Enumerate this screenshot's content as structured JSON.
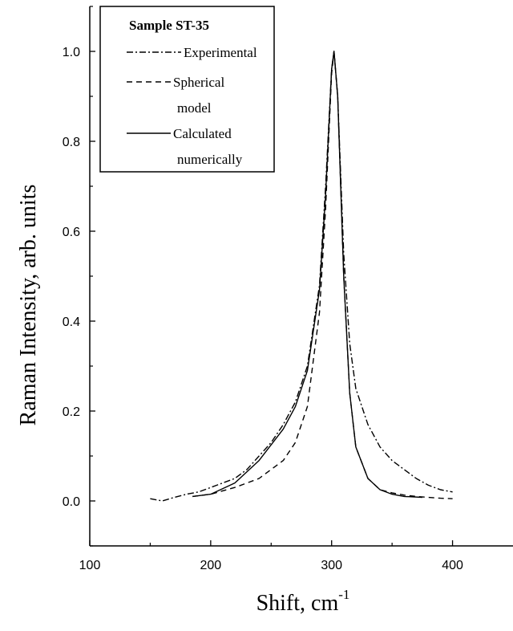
{
  "chart_data": {
    "type": "line",
    "xlabel": "Shift, cm",
    "xlabel_sup": "-1",
    "ylabel": "Raman Intensity, arb. units",
    "xlim": [
      100,
      450
    ],
    "ylim": [
      -0.1,
      1.1
    ],
    "xticks": [
      100,
      200,
      300,
      400
    ],
    "yticks": [
      0.0,
      0.2,
      0.4,
      0.6,
      0.8,
      1.0
    ],
    "ytick_labels": [
      "0.0",
      "0.2",
      "0.4",
      "0.6",
      "0.8",
      "1.0"
    ],
    "legend": {
      "title": "Sample ST-35",
      "placement": "top-left",
      "entries": [
        {
          "lines": [
            "Experimental"
          ],
          "style": "dash-dot"
        },
        {
          "lines": [
            "Spherical",
            "model"
          ],
          "style": "dashed"
        },
        {
          "lines": [
            "Calculated",
            "numerically"
          ],
          "style": "solid"
        }
      ]
    },
    "series": [
      {
        "name": "Experimental",
        "style": "dash-dot",
        "x": [
          150,
          160,
          170,
          180,
          190,
          200,
          210,
          220,
          230,
          240,
          250,
          260,
          270,
          280,
          290,
          295,
          300,
          302,
          305,
          310,
          315,
          320,
          330,
          340,
          350,
          360,
          370,
          380,
          390,
          400
        ],
        "y": [
          0.005,
          0.0,
          0.008,
          0.015,
          0.02,
          0.03,
          0.04,
          0.05,
          0.07,
          0.1,
          0.13,
          0.17,
          0.22,
          0.3,
          0.48,
          0.7,
          0.96,
          1.0,
          0.9,
          0.55,
          0.35,
          0.25,
          0.17,
          0.12,
          0.09,
          0.07,
          0.05,
          0.035,
          0.025,
          0.02
        ]
      },
      {
        "name": "Spherical model",
        "style": "dashed",
        "x": [
          185,
          200,
          220,
          240,
          260,
          270,
          280,
          290,
          295,
          300,
          302,
          305,
          310,
          315,
          320,
          330,
          340,
          350,
          360,
          370,
          380,
          390,
          400
        ],
        "y": [
          0.01,
          0.015,
          0.03,
          0.05,
          0.09,
          0.13,
          0.21,
          0.42,
          0.65,
          0.95,
          1.0,
          0.9,
          0.5,
          0.24,
          0.12,
          0.05,
          0.025,
          0.018,
          0.013,
          0.01,
          0.008,
          0.006,
          0.005
        ]
      },
      {
        "name": "Calculated numerically",
        "style": "solid",
        "x": [
          185,
          200,
          220,
          240,
          260,
          270,
          280,
          290,
          295,
          300,
          302,
          305,
          310,
          315,
          320,
          330,
          340,
          350,
          360,
          375
        ],
        "y": [
          0.01,
          0.015,
          0.04,
          0.09,
          0.16,
          0.21,
          0.29,
          0.47,
          0.68,
          0.96,
          1.0,
          0.9,
          0.5,
          0.24,
          0.12,
          0.05,
          0.025,
          0.015,
          0.01,
          0.008
        ]
      }
    ]
  }
}
